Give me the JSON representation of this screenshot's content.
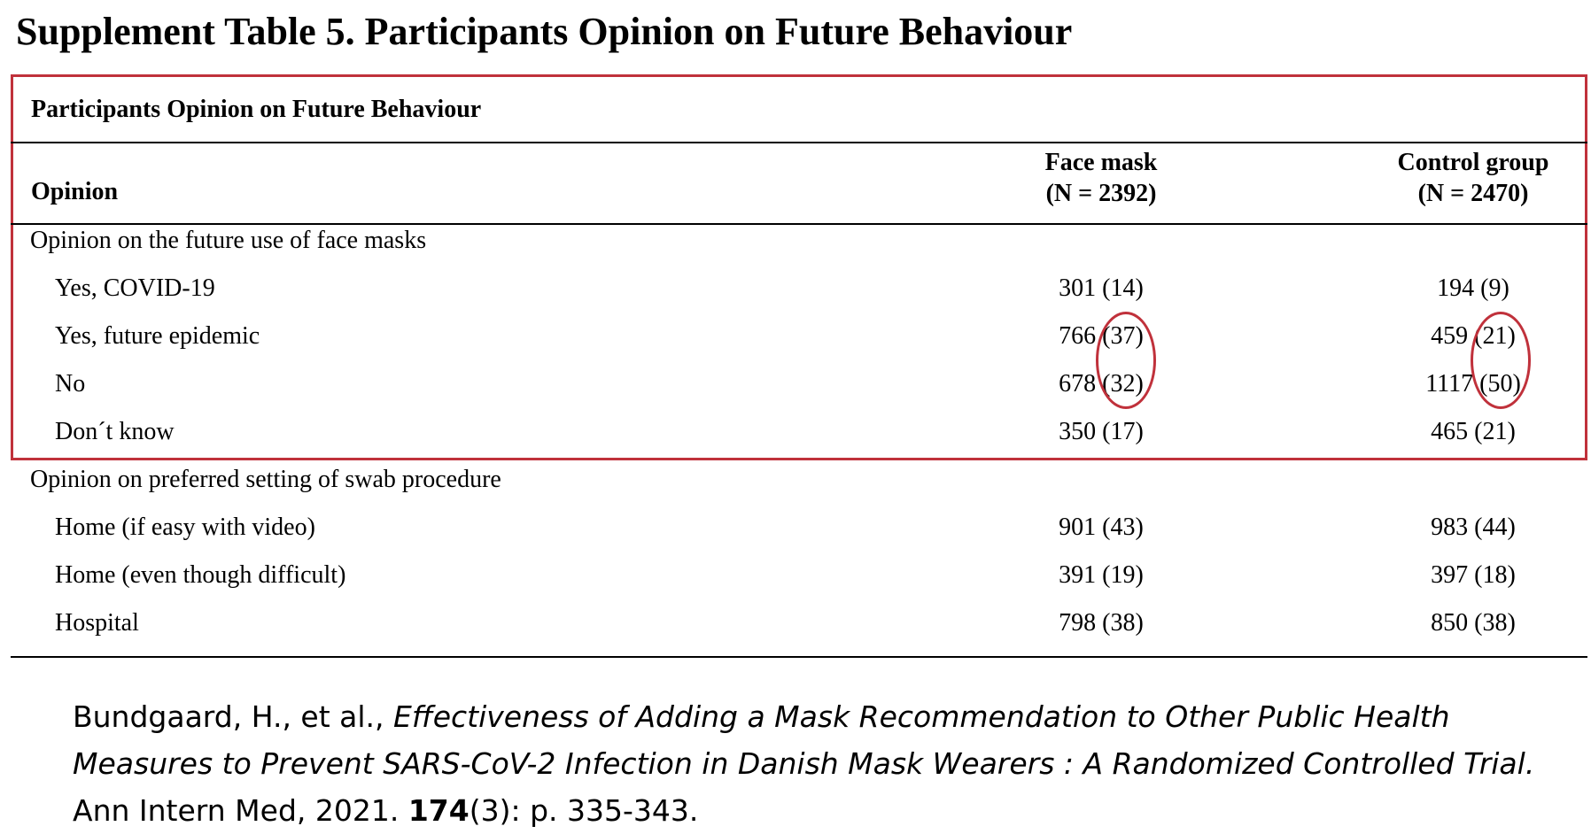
{
  "title": "Supplement Table 5. Participants Opinion on Future Behaviour",
  "table": {
    "subtitle": "Participants Opinion on Future Behaviour",
    "opinion_header": "Opinion",
    "columns": [
      {
        "name": "Face mask",
        "n": "(N = 2392)"
      },
      {
        "name": "Control group",
        "n": "(N = 2470)"
      }
    ],
    "rows": [
      {
        "label": "Opinion on the future use of face masks",
        "section": true,
        "fm": "",
        "cg": ""
      },
      {
        "label": "Yes, COVID-19",
        "fm": "301 (14)",
        "cg": "194 (9)"
      },
      {
        "label": "Yes, future epidemic",
        "fm": "766 (37)",
        "cg": "459 (21)"
      },
      {
        "label": "No",
        "fm": "678 (32)",
        "cg": "1117 (50)"
      },
      {
        "label": "Don´t know",
        "fm": "350 (17)",
        "cg": "465 (21)"
      },
      {
        "label": "Opinion on preferred setting of swab procedure",
        "section": true,
        "fm": "",
        "cg": ""
      },
      {
        "label": "Home (if easy with video)",
        "fm": "901 (43)",
        "cg": "983 (44)"
      },
      {
        "label": "Home (even though difficult)",
        "fm": "391 (19)",
        "cg": "397 (18)"
      },
      {
        "label": "Hospital",
        "fm": "798 (38)",
        "cg": "850 (38)"
      }
    ]
  },
  "citation": {
    "authors": "Bundgaard, H., et al., ",
    "article_title": "Effectiveness of Adding a Mask Recommendation to Other Public Health Measures to Prevent SARS-CoV-2 Infection in Danish Mask Wearers : A Randomized Controlled Trial.",
    "journal": " Ann Intern Med, 2021. ",
    "volume": "174",
    "pages": "(3): p. 335-343."
  },
  "annotation_color": "#c0313b"
}
